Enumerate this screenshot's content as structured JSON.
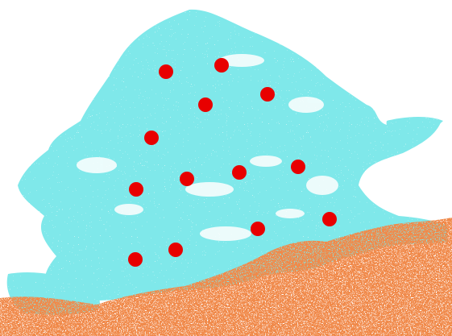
{
  "colors": {
    "background": "#ffffff",
    "cyan_region": "#7fe8ea",
    "orange_region": "#f08a4b",
    "markers": "#e80000"
  },
  "markers": {
    "count": 13,
    "shape": "filled-circle"
  }
}
